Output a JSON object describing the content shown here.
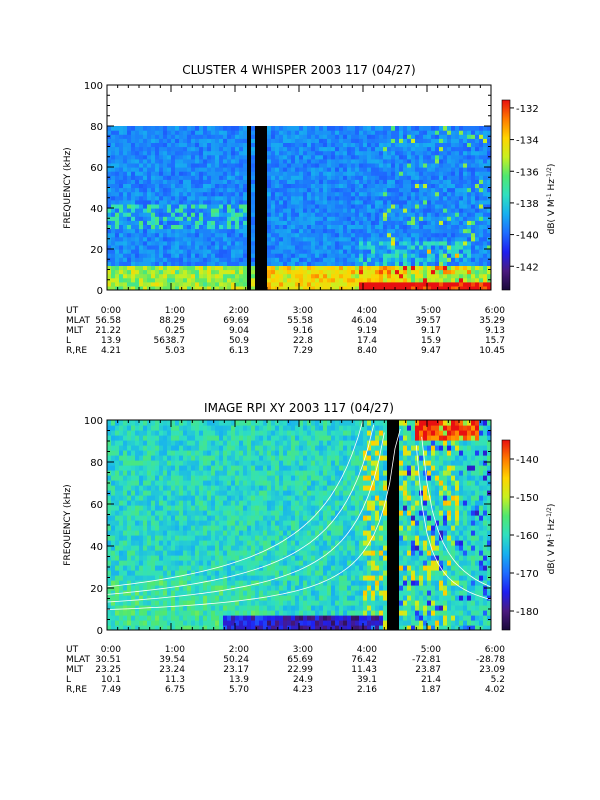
{
  "chart_data": [
    {
      "type": "heatmap",
      "title": "CLUSTER 4 WHISPER 2003 117 (04/27)",
      "ylabel": "FREQUENCY (kHz)",
      "ylim": [
        0,
        100
      ],
      "yticks": [
        "0",
        "20",
        "40",
        "60",
        "80",
        "100"
      ],
      "xlim": [
        "0:00",
        "6:00"
      ],
      "data_freq_max": 80,
      "colorbar": {
        "label": "dB( V M⁻¹ Hz⁻¹ᐟ²)",
        "label_parts": [
          "dB( V M",
          "-1",
          " Hz",
          "-1/2",
          ")"
        ],
        "range": [
          -143.5,
          -131.5
        ],
        "ticks": [
          "-132",
          "-134",
          "-136",
          "-138",
          "-140",
          "-142"
        ],
        "tick_values": [
          -132,
          -134,
          -136,
          -138,
          -140,
          -142
        ]
      },
      "data_gaps_ut": [
        [
          "2:10",
          "2:15"
        ],
        [
          "2:19",
          "2:30"
        ]
      ],
      "ephemeris": {
        "labels": [
          "UT",
          "MLAT",
          "MLT",
          "L",
          "R,RE"
        ],
        "rows": [
          [
            "0:00",
            "1:00",
            "2:00",
            "3:00",
            "4:00",
            "5:00",
            "6:00"
          ],
          [
            "56.58",
            "88.29",
            "69.69",
            "55.58",
            "46.04",
            "39.57",
            "35.29"
          ],
          [
            "21.22",
            "0.25",
            "9.04",
            "9.16",
            "9.19",
            "9.17",
            "9.13"
          ],
          [
            "13.9",
            "5638.7",
            "50.9",
            "22.8",
            "17.4",
            "15.9",
            "15.7"
          ],
          [
            "4.21",
            "5.03",
            "6.13",
            "7.29",
            "8.40",
            "9.47",
            "10.45"
          ]
        ]
      }
    },
    {
      "type": "heatmap",
      "title": "IMAGE RPI XY 2003 117 (04/27)",
      "ylabel": "FREQUENCY (kHz)",
      "ylim": [
        0,
        100
      ],
      "yticks": [
        "0",
        "20",
        "40",
        "60",
        "80",
        "100"
      ],
      "xlim": [
        "0:00",
        "6:00"
      ],
      "data_freq_max": 100,
      "colorbar": {
        "label_parts": [
          "dB( V M",
          "-1",
          " Hz",
          "-1/2",
          ")"
        ],
        "range": [
          -185,
          -135
        ],
        "ticks": [
          "-140",
          "-150",
          "-160",
          "-170",
          "-180"
        ],
        "tick_values": [
          -140,
          -150,
          -160,
          -170,
          -180
        ]
      },
      "data_gaps_ut": [
        [
          "4:17",
          "4:20"
        ],
        [
          "4:23",
          "4:33"
        ]
      ],
      "ephemeris": {
        "labels": [
          "UT",
          "MLAT",
          "MLT",
          "L",
          "R,RE"
        ],
        "rows": [
          [
            "0:00",
            "1:00",
            "2:00",
            "3:00",
            "4:00",
            "5:00",
            "6:00"
          ],
          [
            "30.51",
            "39.54",
            "50.24",
            "65.69",
            "76.42",
            "-72.81",
            "-28.78"
          ],
          [
            "23.25",
            "23.24",
            "23.17",
            "22.99",
            "11.43",
            "23.87",
            "23.09"
          ],
          [
            "10.1",
            "11.3",
            "13.9",
            "24.9",
            "39.1",
            "21.4",
            "5.2"
          ],
          [
            "7.49",
            "6.75",
            "5.70",
            "4.23",
            "2.16",
            "1.87",
            "4.02"
          ]
        ]
      }
    }
  ],
  "colors": {
    "scale": [
      "#1a0a3a",
      "#4a1a80",
      "#1f1ff0",
      "#1e6cff",
      "#17b0f0",
      "#2fe0c0",
      "#50e870",
      "#c8f020",
      "#ffd400",
      "#ff7a00",
      "#e81010"
    ],
    "gap": "#000000",
    "background": "#ffffff"
  }
}
